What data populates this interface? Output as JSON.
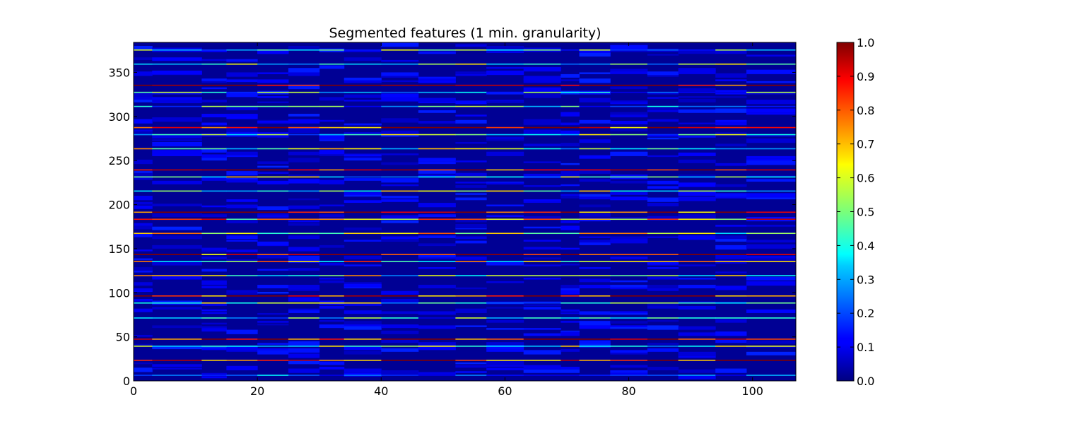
{
  "chart_data": {
    "type": "heatmap",
    "title": "Segmented features (1 min. granularity)",
    "xlabel": "",
    "ylabel": "",
    "xlim": [
      0,
      107
    ],
    "ylim": [
      0,
      384
    ],
    "x_ticks": [
      0,
      20,
      40,
      60,
      80,
      100
    ],
    "y_ticks": [
      0,
      50,
      100,
      150,
      200,
      250,
      300,
      350
    ],
    "colormap": "jet",
    "colorbar": {
      "vmin": 0.0,
      "vmax": 1.0,
      "ticks": [
        "0.0",
        "0.1",
        "0.2",
        "0.3",
        "0.4",
        "0.5",
        "0.6",
        "0.7",
        "0.8",
        "0.9",
        "1.0"
      ]
    },
    "segment_boundaries_x": [
      3,
      11,
      15,
      20,
      25,
      30,
      34,
      40,
      46,
      52,
      57,
      63,
      69,
      72,
      77,
      83,
      88,
      94,
      99,
      107
    ],
    "block_period_rows": 24,
    "background_value": 0.02,
    "bright_rows": [
      {
        "row": 6,
        "value": 0.12
      },
      {
        "row": 23,
        "value": 0.88
      },
      {
        "row": 39,
        "value": 0.45
      },
      {
        "row": 47,
        "value": 0.92
      },
      {
        "row": 71,
        "value": 0.35
      },
      {
        "row": 88,
        "value": 0.42
      },
      {
        "row": 96,
        "value": 0.9
      },
      {
        "row": 119,
        "value": 0.5
      },
      {
        "row": 135,
        "value": 0.6
      },
      {
        "row": 143,
        "value": 0.85
      },
      {
        "row": 167,
        "value": 0.55
      },
      {
        "row": 183,
        "value": 0.7
      },
      {
        "row": 191,
        "value": 0.88
      },
      {
        "row": 215,
        "value": 0.5
      },
      {
        "row": 231,
        "value": 0.45
      },
      {
        "row": 239,
        "value": 0.9
      },
      {
        "row": 263,
        "value": 0.5
      },
      {
        "row": 279,
        "value": 0.4
      },
      {
        "row": 287,
        "value": 0.85
      },
      {
        "row": 311,
        "value": 0.35
      },
      {
        "row": 327,
        "value": 0.35
      },
      {
        "row": 335,
        "value": 0.9
      },
      {
        "row": 359,
        "value": 0.4
      },
      {
        "row": 375,
        "value": 0.38
      }
    ],
    "grid": false,
    "legend": "none"
  }
}
